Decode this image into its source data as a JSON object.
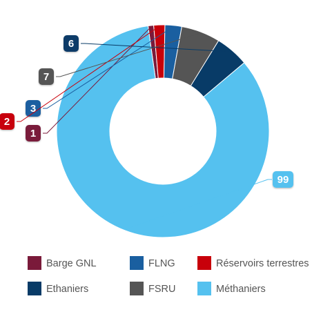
{
  "chart_data": {
    "type": "pie",
    "variant": "donut",
    "title": "",
    "categories": [
      "Barge GNL",
      "FLNG",
      "Réservoirs terrestres",
      "Ethaniers",
      "FSRU",
      "Méthaniers"
    ],
    "values": [
      1,
      3,
      2,
      6,
      7,
      99
    ],
    "colors": [
      "#7a1a3a",
      "#1a5fa0",
      "#c8000a",
      "#083b67",
      "#555555",
      "#55c1ef"
    ],
    "draw_order": [
      0,
      2,
      1,
      4,
      3,
      5
    ],
    "legend_position": "bottom",
    "data_labels": true
  }
}
